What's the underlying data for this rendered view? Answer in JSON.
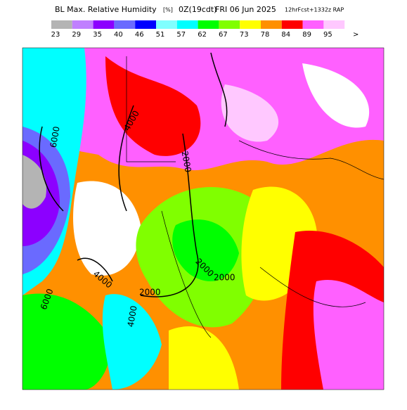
{
  "header": {
    "title": "BL Max. Relative Humidity",
    "units": "[%]",
    "valid": "0Z(19cdt)",
    "date": "FRI 06 Jun 2025",
    "run": "12hrFcst+1332z RAP"
  },
  "legend": {
    "items": [
      {
        "label": "23",
        "color": "#b4b4b4"
      },
      {
        "label": "29",
        "color": "#c080ff"
      },
      {
        "label": "35",
        "color": "#8c00ff"
      },
      {
        "label": "40",
        "color": "#6a6aff"
      },
      {
        "label": "46",
        "color": "#0000ff"
      },
      {
        "label": "51",
        "color": "#80ffff"
      },
      {
        "label": "57",
        "color": "#00ffff"
      },
      {
        "label": "62",
        "color": "#00ff00"
      },
      {
        "label": "67",
        "color": "#80ff00"
      },
      {
        "label": "73",
        "color": "#ffff00"
      },
      {
        "label": "78",
        "color": "#ff9000"
      },
      {
        "label": "84",
        "color": "#ff0000"
      },
      {
        "label": "89",
        "color": "#ff60ff"
      },
      {
        "label": "95",
        "color": "#ffc8ff"
      }
    ],
    "overflow": ">"
  },
  "contour_labels": [
    "4000",
    "6000",
    "2000",
    "2000",
    "2000",
    "4000",
    "2000",
    "6000",
    "4000"
  ]
}
